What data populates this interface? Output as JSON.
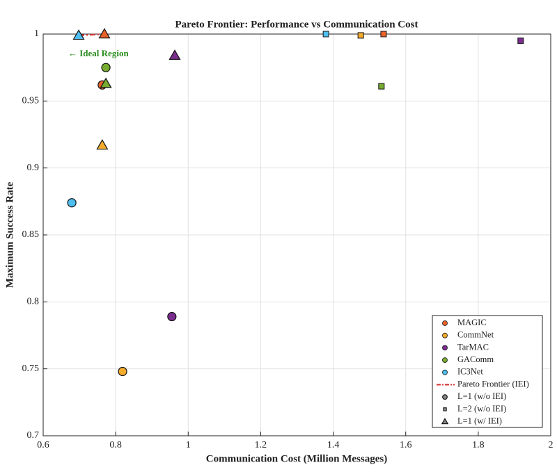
{
  "chart_data": {
    "type": "scatter",
    "title": "Pareto Frontier: Performance vs Communication Cost",
    "x_label": "Communication Cost (Million Messages)",
    "y_label": "Maximum Success Rate",
    "annotation": "← Ideal Region",
    "annotation_color": "#2a8c1e",
    "methods": [
      "MAGIC",
      "CommNet",
      "TarMAC",
      "GAComm",
      "IC3Net"
    ],
    "colors": [
      "#e8622a",
      "#f5ac2d",
      "#7b2d8e",
      "#77ac30",
      "#4dbeee"
    ],
    "series": [
      {
        "name": "L=1 (w/o IEI)",
        "marker": "circle",
        "x": [
          0.763,
          0.819,
          0.955,
          0.773,
          0.679
        ],
        "values": [
          0.962,
          0.748,
          0.789,
          0.975,
          0.874
        ]
      },
      {
        "name": "L=2 (w/o IEI)",
        "marker": "square",
        "x": [
          1.539,
          1.476,
          1.917,
          1.533,
          1.38
        ],
        "values": [
          1.0,
          0.999,
          0.995,
          0.961,
          1.0
        ]
      },
      {
        "name": "L=1 (w/ IEI)",
        "marker": "triangle",
        "x": [
          0.769,
          0.763,
          0.963,
          0.773,
          0.698
        ],
        "values": [
          1.0,
          0.917,
          0.984,
          0.963,
          0.999
        ]
      }
    ],
    "pareto": {
      "name": "Pareto Frontier (IEI)",
      "color": "#d03030",
      "x": [
        0.698,
        0.769
      ],
      "values": [
        0.999,
        1.0
      ]
    },
    "xlim": [
      0.6,
      2
    ],
    "xticks": [
      0.6,
      0.8,
      1,
      1.2,
      1.4,
      1.6,
      1.8,
      2
    ],
    "ylim": [
      0.7,
      1
    ],
    "yticks": [
      0.7,
      0.75,
      0.8,
      0.85,
      0.9,
      0.95,
      1
    ],
    "grid": true
  }
}
